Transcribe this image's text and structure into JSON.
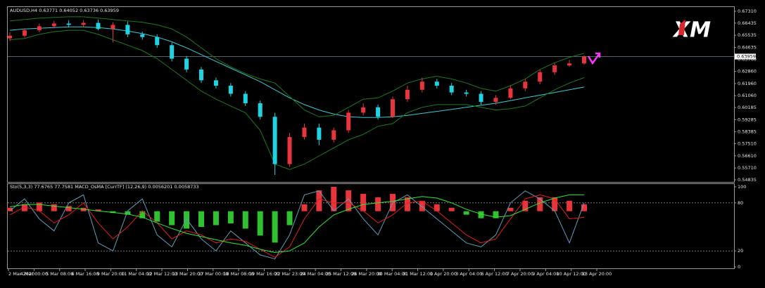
{
  "chart_data": [
    {
      "type": "candlestick",
      "title": "AUDUSD,H4 0.63771 0.64052 0.63736 0.63959",
      "logo": "XM",
      "current_price": 0.63959,
      "ylim": [
        0.54835,
        0.6731
      ],
      "yticks": [
        {
          "value": 0.6731,
          "label": "0.67310"
        },
        0.66435,
        0.65535,
        0.64635,
        {
          "value": 0.6376,
          "label": "0.63760"
        },
        {
          "value": 0.6286,
          "label": "0.62860"
        },
        {
          "value": 0.6196,
          "label": "0.61960"
        },
        {
          "value": 0.6106,
          "label": "0.61060"
        },
        0.60185,
        0.59285,
        0.58385,
        {
          "value": 0.5751,
          "label": "0.57510"
        },
        {
          "value": 0.5661,
          "label": "0.56610"
        },
        {
          "value": 0.5571,
          "label": "0.55710"
        },
        0.54835
      ],
      "up_color": "#e8343b",
      "down_color": "#1fd3e0",
      "open": [
        0.653,
        0.655,
        0.659,
        0.662,
        0.664,
        0.663,
        0.6645,
        0.66,
        0.663,
        0.656,
        0.654,
        0.648,
        0.638,
        0.63,
        0.622,
        0.618,
        0.612,
        0.605,
        0.595,
        0.56,
        0.58,
        0.587,
        0.578,
        0.585,
        0.598,
        0.602,
        0.595,
        0.608,
        0.615,
        0.621,
        0.618,
        0.613,
        0.612,
        0.606,
        0.609,
        0.616,
        0.621,
        0.628,
        0.633,
        0.6345
      ],
      "high": [
        0.6575,
        0.6605,
        0.664,
        0.666,
        0.6665,
        0.6665,
        0.667,
        0.665,
        0.6655,
        0.658,
        0.656,
        0.65,
        0.64,
        0.632,
        0.624,
        0.62,
        0.614,
        0.607,
        0.598,
        0.583,
        0.59,
        0.59,
        0.587,
        0.6,
        0.605,
        0.604,
        0.61,
        0.618,
        0.624,
        0.623,
        0.62,
        0.615,
        0.614,
        0.611,
        0.618,
        0.623,
        0.63,
        0.635,
        0.637,
        0.6405
      ],
      "low": [
        0.651,
        0.6535,
        0.6575,
        0.6605,
        0.661,
        0.6615,
        0.659,
        0.65,
        0.654,
        0.652,
        0.646,
        0.636,
        0.628,
        0.62,
        0.616,
        0.61,
        0.603,
        0.593,
        0.552,
        0.558,
        0.578,
        0.574,
        0.576,
        0.583,
        0.596,
        0.593,
        0.594,
        0.606,
        0.613,
        0.616,
        0.611,
        0.61,
        0.604,
        0.604,
        0.608,
        0.614,
        0.619,
        0.626,
        0.632,
        0.6335
      ],
      "close": [
        0.655,
        0.659,
        0.662,
        0.664,
        0.663,
        0.6645,
        0.66,
        0.663,
        0.656,
        0.654,
        0.648,
        0.638,
        0.63,
        0.622,
        0.618,
        0.612,
        0.605,
        0.595,
        0.56,
        0.58,
        0.587,
        0.578,
        0.585,
        0.598,
        0.602,
        0.595,
        0.608,
        0.615,
        0.621,
        0.618,
        0.613,
        0.612,
        0.606,
        0.609,
        0.616,
        0.621,
        0.628,
        0.633,
        0.6345,
        0.6396
      ],
      "series": [
        {
          "color": "#3fc9d6",
          "values": [
            0.659,
            0.66,
            0.6605,
            0.661,
            0.6615,
            0.6615,
            0.661,
            0.66,
            0.6585,
            0.6565,
            0.654,
            0.6505,
            0.646,
            0.641,
            0.636,
            0.631,
            0.626,
            0.621,
            0.615,
            0.609,
            0.604,
            0.6,
            0.597,
            0.595,
            0.5945,
            0.5945,
            0.595,
            0.596,
            0.5975,
            0.599,
            0.6005,
            0.602,
            0.6035,
            0.605,
            0.607,
            0.609,
            0.611,
            0.613,
            0.615,
            0.617
          ]
        },
        {
          "color": "#1e7a1e",
          "values": [
            0.666,
            0.667,
            0.668,
            0.6685,
            0.669,
            0.669,
            0.668,
            0.667,
            0.666,
            0.665,
            0.663,
            0.66,
            0.654,
            0.646,
            0.638,
            0.632,
            0.627,
            0.623,
            0.62,
            0.61,
            0.6,
            0.595,
            0.596,
            0.602,
            0.608,
            0.609,
            0.614,
            0.62,
            0.623,
            0.625,
            0.623,
            0.62,
            0.616,
            0.614,
            0.618,
            0.623,
            0.63,
            0.635,
            0.639,
            0.642
          ]
        },
        {
          "color": "#1e7a1e",
          "values": [
            0.652,
            0.653,
            0.656,
            0.658,
            0.659,
            0.659,
            0.656,
            0.652,
            0.648,
            0.644,
            0.638,
            0.63,
            0.622,
            0.614,
            0.608,
            0.603,
            0.598,
            0.585,
            0.56,
            0.556,
            0.56,
            0.566,
            0.572,
            0.578,
            0.582,
            0.588,
            0.59,
            0.598,
            0.602,
            0.604,
            0.604,
            0.604,
            0.602,
            0.6,
            0.601,
            0.603,
            0.609,
            0.615,
            0.62,
            0.624
          ]
        }
      ]
    },
    {
      "type": "oscillator",
      "title": "Sto(5,3,3) 77.6765 77.7581 MACD_OsMA [CurrTF] (12,26,9) 0.0056201 0.0058733",
      "ylim": [
        0,
        100
      ],
      "yticks": [
        100,
        80,
        20,
        0
      ],
      "levels": [
        80,
        20
      ],
      "y2lim": [
        -0.016,
        0.007
      ],
      "x_labels": [
        "2 Mar 2020",
        "4 Mar 00:00",
        "5 Mar 08:00",
        "6 Mar 16:00",
        "9 Mar 20:00",
        "11 Mar 04:00",
        "12 Mar 12:00",
        "13 Mar 20:00",
        "17 Mar 00:00",
        "18 Mar 08:00",
        "19 Mar 16:00",
        "22 Mar 23:00",
        "24 Mar 04:00",
        "25 Mar 12:00",
        "26 Mar 20:00",
        "30 Mar 04:00",
        "31 Mar 12:00",
        "1 Apr 20:00",
        "3 Apr 04:00",
        "6 Apr 12:00",
        "7 Apr 20:00",
        "9 Apr 04:00",
        "10 Apr 12:00",
        "13 Apr 20:00"
      ],
      "histogram": {
        "axis": "y2",
        "up_color": "#e8343b",
        "down_color": "#2fc12f",
        "values": [
          0.001,
          0.002,
          0.0025,
          0.002,
          0.0015,
          0.001,
          0.0005,
          -0.0005,
          -0.001,
          -0.002,
          -0.003,
          -0.004,
          -0.005,
          -0.0045,
          -0.004,
          -0.0035,
          -0.005,
          -0.007,
          -0.009,
          -0.004,
          0.002,
          0.006,
          0.007,
          0.006,
          0.005,
          0.004,
          0.005,
          0.004,
          0.003,
          0.002,
          0.001,
          -0.001,
          -0.002,
          -0.002,
          0.001,
          0.003,
          0.004,
          0.004,
          0.003,
          0.002
        ]
      },
      "series": [
        {
          "color": "#5f9fb8",
          "values": [
            70,
            85,
            60,
            45,
            80,
            90,
            30,
            20,
            70,
            85,
            40,
            25,
            60,
            35,
            20,
            45,
            30,
            15,
            10,
            40,
            90,
            95,
            70,
            85,
            60,
            40,
            80,
            90,
            75,
            60,
            45,
            30,
            25,
            40,
            80,
            95,
            85,
            70,
            30,
            80
          ]
        },
        {
          "color": "#e02020",
          "values": [
            65,
            75,
            70,
            55,
            65,
            80,
            55,
            35,
            50,
            70,
            55,
            35,
            45,
            40,
            30,
            35,
            32,
            22,
            12,
            25,
            60,
            85,
            80,
            80,
            70,
            55,
            65,
            80,
            82,
            70,
            55,
            40,
            30,
            35,
            60,
            85,
            90,
            85,
            60,
            62
          ]
        },
        {
          "color": "#33e633",
          "values": [
            75,
            78,
            78,
            76,
            74,
            72,
            70,
            68,
            66,
            62,
            55,
            48,
            42,
            38,
            34,
            30,
            27,
            22,
            18,
            20,
            30,
            50,
            65,
            72,
            78,
            80,
            82,
            85,
            88,
            86,
            80,
            72,
            66,
            62,
            64,
            72,
            80,
            86,
            90,
            90
          ]
        }
      ]
    }
  ]
}
